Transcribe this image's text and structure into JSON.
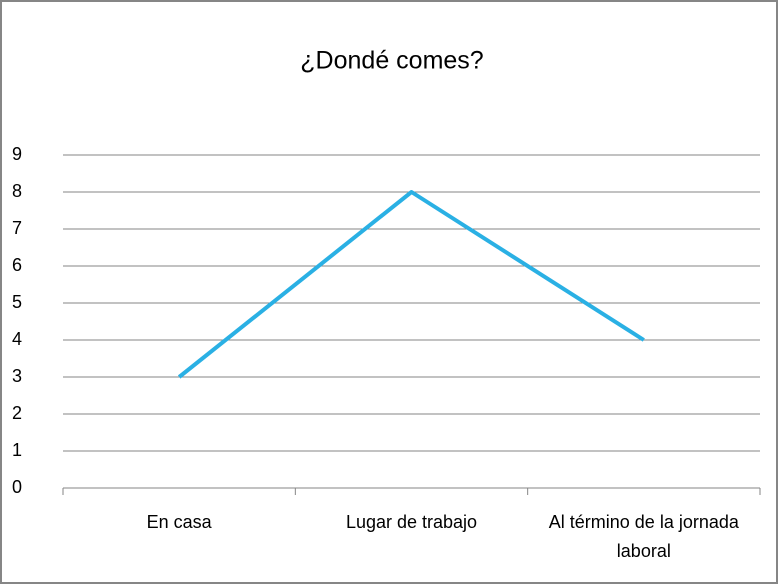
{
  "chart_data": {
    "type": "line",
    "title": "¿Dondé comes?",
    "categories": [
      "En casa",
      "Lugar de trabajo",
      "Al término de la jornada laboral"
    ],
    "values": [
      3,
      8,
      4
    ],
    "color": "#2ab0e4",
    "ylim": [
      0,
      9
    ],
    "yticks": [
      0,
      1,
      2,
      3,
      4,
      5,
      6,
      7,
      8,
      9
    ],
    "grid": true
  }
}
